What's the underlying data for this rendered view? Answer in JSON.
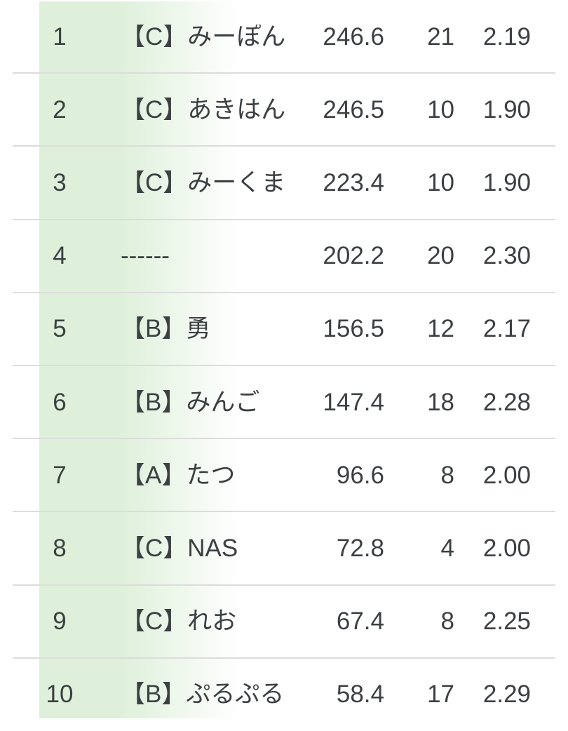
{
  "colors": {
    "highlight_band_green": "#def0da",
    "divider_gray": "#dcdcdc",
    "text_gray": "#3c4043",
    "background": "#ffffff"
  },
  "table": {
    "rows": [
      {
        "rank": "1",
        "name": "【C】みーぽん",
        "score": "246.6",
        "count": "21",
        "ratio": "2.19"
      },
      {
        "rank": "2",
        "name": "【C】あきはん",
        "score": "246.5",
        "count": "10",
        "ratio": "1.90"
      },
      {
        "rank": "3",
        "name": "【C】みーくま",
        "score": "223.4",
        "count": "10",
        "ratio": "1.90"
      },
      {
        "rank": "4",
        "name": "------",
        "score": "202.2",
        "count": "20",
        "ratio": "2.30"
      },
      {
        "rank": "5",
        "name": "【B】勇",
        "score": "156.5",
        "count": "12",
        "ratio": "2.17"
      },
      {
        "rank": "6",
        "name": "【B】みんご",
        "score": "147.4",
        "count": "18",
        "ratio": "2.28"
      },
      {
        "rank": "7",
        "name": "【A】たつ",
        "score": "96.6",
        "count": "8",
        "ratio": "2.00"
      },
      {
        "rank": "8",
        "name": "【C】NAS",
        "score": "72.8",
        "count": "4",
        "ratio": "2.00"
      },
      {
        "rank": "9",
        "name": "【C】れお",
        "score": "67.4",
        "count": "8",
        "ratio": "2.25"
      },
      {
        "rank": "10",
        "name": "【B】ぷるぷる",
        "score": "58.4",
        "count": "17",
        "ratio": "2.29"
      }
    ]
  }
}
